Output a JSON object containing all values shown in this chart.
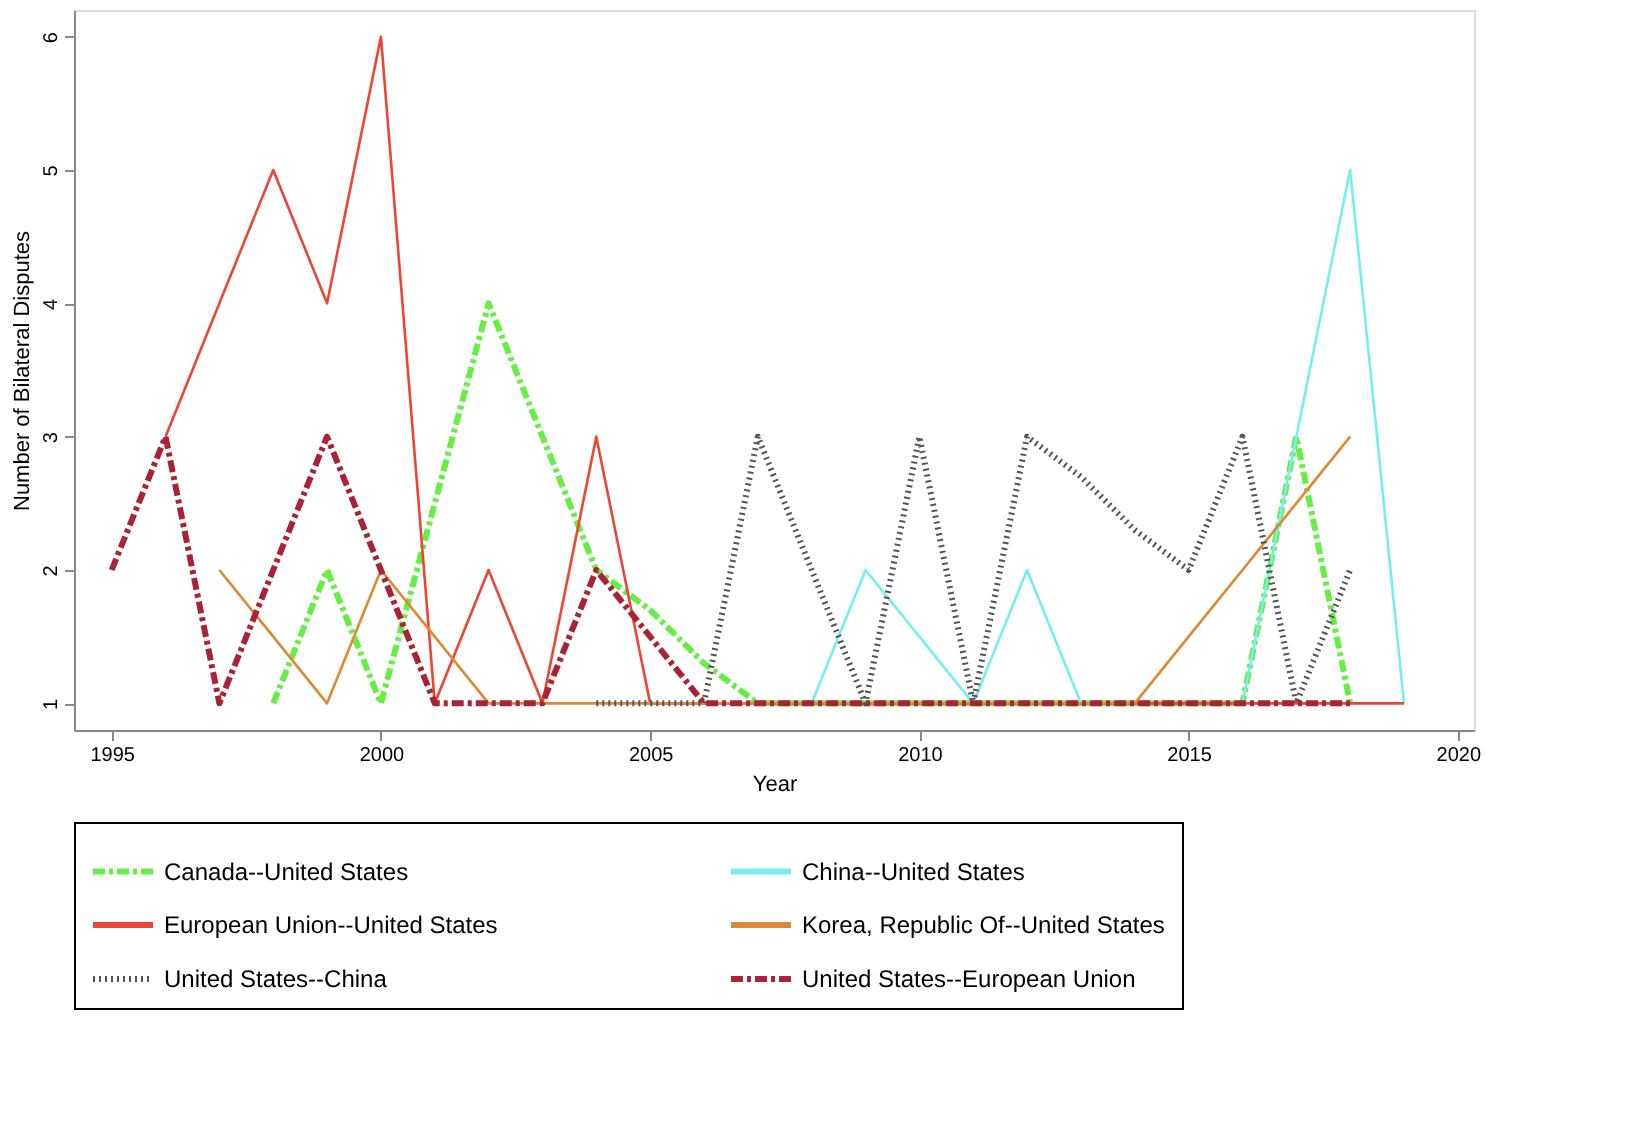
{
  "chart_data": {
    "type": "line",
    "xlabel": "Year",
    "ylabel": "Number of Bilateral Disputes",
    "xlim": [
      1994.3,
      2020.3
    ],
    "xticks": [
      1995,
      2000,
      2005,
      2010,
      2015,
      2020
    ],
    "ylim": [
      0.8,
      6.2
    ],
    "yticks": [
      1,
      2,
      3,
      4,
      5,
      6
    ],
    "grid": false,
    "legend": "bottom",
    "marker": "none",
    "series": [
      {
        "name": "Canada--United States",
        "color": "#66ee44",
        "line_style": "dashed",
        "x": [
          1998,
          1999,
          2000,
          2001,
          2002,
          2003,
          2004,
          2005,
          2006,
          2007,
          2008,
          2009,
          2010,
          2011,
          2012,
          2013,
          2014,
          2015,
          2016,
          2017,
          2018
        ],
        "values": [
          1,
          2,
          1,
          2.5,
          4,
          3,
          2,
          1.7,
          1.3,
          1,
          1,
          1,
          1,
          1,
          1,
          1,
          1,
          1,
          1,
          3,
          1
        ]
      },
      {
        "name": "China--United States",
        "color": "#77eeee",
        "line_style": "solid",
        "x": [
          2008,
          2009,
          2010,
          2011,
          2012,
          2013,
          2014,
          2015,
          2016,
          2017,
          2018,
          2019
        ],
        "values": [
          1,
          2,
          1.5,
          1,
          2,
          1,
          null,
          null,
          1,
          3,
          5,
          1
        ]
      },
      {
        "name": "European Union--United States",
        "color": "#ee4433",
        "line_style": "solid",
        "x": [
          1996,
          1997,
          1998,
          1999,
          2000,
          2001,
          2002,
          2003,
          2004,
          2005,
          2006,
          2007,
          2008,
          2009,
          2010,
          2011,
          2012,
          2013,
          2014,
          2015,
          2016,
          2017,
          2018,
          2019
        ],
        "values": [
          3,
          4,
          5,
          4,
          6,
          1,
          2,
          1,
          3,
          1,
          1,
          1,
          1,
          1,
          1,
          1,
          1,
          1,
          1,
          1,
          1,
          1,
          1,
          1
        ]
      },
      {
        "name": "Korea, Republic Of--United States",
        "color": "#dd8833",
        "line_style": "solid",
        "x": [
          1997,
          1998,
          1999,
          2000,
          2001,
          2002,
          2003,
          2004,
          2005,
          2006,
          2007,
          2008,
          2009,
          2010,
          2011,
          2012,
          2013,
          2014,
          2015,
          2016,
          2017,
          2018
        ],
        "values": [
          2,
          1.5,
          1,
          2,
          1.5,
          1,
          1,
          1,
          1,
          1,
          1,
          1,
          1,
          1,
          1,
          1,
          1,
          1,
          1.5,
          2,
          2.5,
          3
        ]
      },
      {
        "name": "United States--China",
        "color": "#555555",
        "line_style": "dotted",
        "x": [
          2004,
          2005,
          2006,
          2007,
          2008,
          2009,
          2010,
          2011,
          2012,
          2013,
          2014,
          2015,
          2016,
          2017,
          2018
        ],
        "values": [
          1,
          1,
          1,
          3,
          2,
          1,
          3,
          1,
          3,
          2.7,
          2.3,
          2,
          3,
          1,
          2
        ]
      },
      {
        "name": "United States--European Union",
        "color": "#aa2233",
        "line_style": "dashed",
        "x": [
          1995,
          1996,
          1997,
          1998,
          1999,
          2000,
          2001,
          2002,
          2003,
          2004,
          2005,
          2006,
          2007,
          2008,
          2009,
          2010,
          2011,
          2012,
          2013,
          2014,
          2015,
          2016,
          2017,
          2018
        ],
        "values": [
          2,
          3,
          1,
          2,
          3,
          2,
          1,
          1,
          1,
          2,
          1.5,
          1,
          1,
          1,
          1,
          1,
          1,
          1,
          1,
          1,
          1,
          1,
          1,
          1
        ]
      }
    ]
  }
}
